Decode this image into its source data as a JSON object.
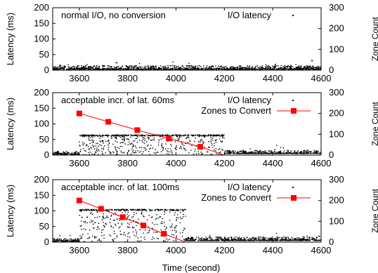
{
  "figure": {
    "xlabel": "Time (second)",
    "ylabel_left": "Latency (ms)",
    "ylabel_right": "Zone Count",
    "colors": {
      "io_points": "#000000",
      "zones": "#ff0000"
    }
  },
  "chart_data": [
    {
      "type": "scatter",
      "title": "normal I/O, no conversion",
      "xlim": [
        3490,
        4600
      ],
      "ylim": [
        0,
        200
      ],
      "y2lim": [
        0,
        300
      ],
      "xticks": [
        3600,
        3800,
        4000,
        4200,
        4400,
        4600
      ],
      "yticks": [
        0,
        50,
        100,
        150,
        200
      ],
      "y2ticks": [
        0,
        100,
        200,
        300
      ],
      "legend": [
        "I/O latency"
      ],
      "legend_position": "top-right",
      "series": [
        {
          "name": "I/O latency",
          "kind": "points",
          "segments": [
            {
              "x_from": 3490,
              "x_to": 4600,
              "base": 3,
              "spread": 12,
              "dense": 1
            }
          ]
        }
      ]
    },
    {
      "type": "scatter",
      "title": "acceptable incr. of lat. 60ms",
      "xlim": [
        3490,
        4600
      ],
      "ylim": [
        0,
        200
      ],
      "y2lim": [
        0,
        300
      ],
      "xticks": [
        3600,
        3800,
        4000,
        4200,
        4400,
        4600
      ],
      "yticks": [
        0,
        50,
        100,
        150,
        200
      ],
      "y2ticks": [
        0,
        100,
        200,
        300
      ],
      "legend": [
        "I/O latency",
        "Zones to Convert"
      ],
      "legend_position": "top-right",
      "series": [
        {
          "name": "I/O latency",
          "kind": "points",
          "segments": [
            {
              "x_from": 3490,
              "x_to": 3600,
              "base": 3,
              "spread": 8,
              "dense": 1
            },
            {
              "x_from": 3600,
              "x_to": 4200,
              "base": 65,
              "spread": 65,
              "dense": 1,
              "cap": 63,
              "scatter": 1
            },
            {
              "x_from": 4200,
              "x_to": 4600,
              "base": 5,
              "spread": 10,
              "dense": 1
            }
          ]
        },
        {
          "name": "Zones to Convert",
          "kind": "line-markers",
          "axis": "right",
          "x": [
            3600,
            3720,
            3840,
            3970,
            4100,
            4200
          ],
          "y": [
            200,
            160,
            120,
            80,
            40,
            0
          ],
          "markers": [
            3600,
            3720,
            3840,
            3970,
            4100
          ]
        }
      ]
    },
    {
      "type": "scatter",
      "title": "acceptable incr. of lat. 100ms",
      "xlim": [
        3490,
        4600
      ],
      "ylim": [
        0,
        200
      ],
      "y2lim": [
        0,
        300
      ],
      "xticks": [
        3600,
        3800,
        4000,
        4200,
        4400,
        4600
      ],
      "yticks": [
        0,
        50,
        100,
        150,
        200
      ],
      "y2ticks": [
        0,
        100,
        200,
        300
      ],
      "legend": [
        "I/O latency",
        "Zones to Convert"
      ],
      "legend_position": "top-right",
      "series": [
        {
          "name": "I/O latency",
          "kind": "points",
          "segments": [
            {
              "x_from": 3490,
              "x_to": 3600,
              "base": 3,
              "spread": 8,
              "dense": 1
            },
            {
              "x_from": 3600,
              "x_to": 4040,
              "base": 100,
              "spread": 100,
              "dense": 1,
              "cap": 103,
              "scatter": 1
            },
            {
              "x_from": 4040,
              "x_to": 4600,
              "base": 5,
              "spread": 12,
              "dense": 1
            }
          ]
        },
        {
          "name": "Zones to Convert",
          "kind": "line-markers",
          "axis": "right",
          "x": [
            3600,
            3690,
            3780,
            3865,
            3950,
            4040
          ],
          "y": [
            200,
            160,
            120,
            80,
            40,
            0
          ],
          "markers": [
            3600,
            3690,
            3780,
            3865,
            3950
          ]
        }
      ]
    }
  ]
}
